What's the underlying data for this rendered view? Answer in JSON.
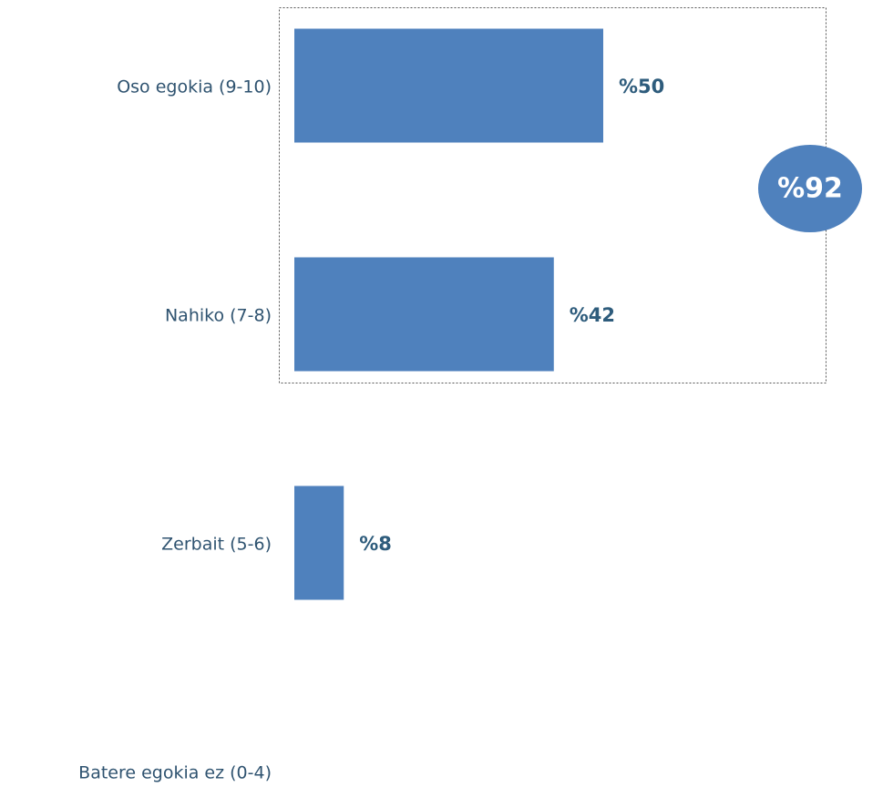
{
  "chart_data": {
    "type": "bar",
    "orientation": "horizontal",
    "categories": [
      "Oso egokia (9-10)",
      "Nahiko (7-8)",
      "Zerbait (5-6)",
      "Batere egokia ez (0-4)"
    ],
    "values": [
      50,
      42,
      8,
      null
    ],
    "value_labels": [
      "%50",
      "%42",
      "%8",
      null
    ],
    "color": "#4f81bd",
    "xlim": [
      0,
      60
    ],
    "annotation": "%92"
  }
}
